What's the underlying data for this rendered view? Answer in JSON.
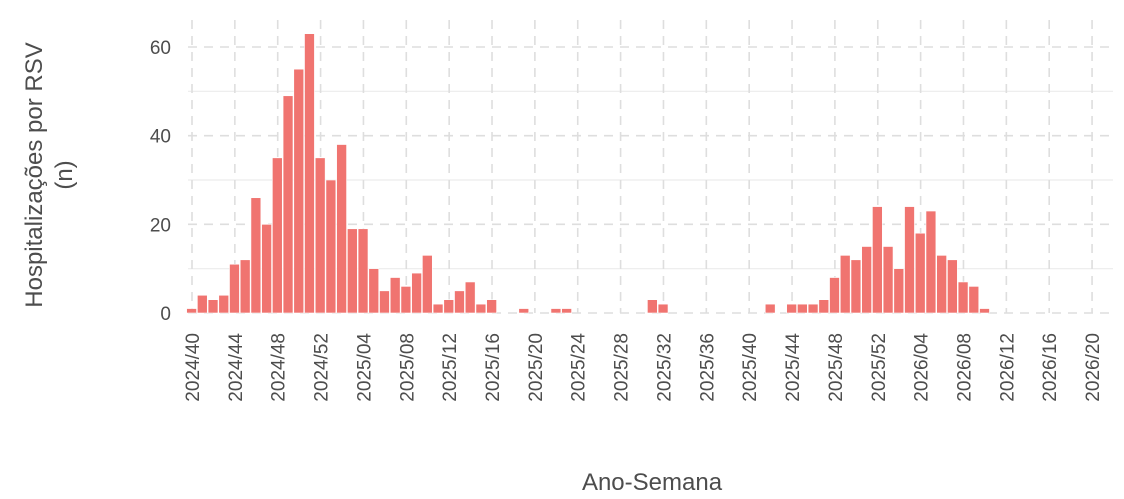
{
  "chart_data": {
    "type": "bar",
    "xlabel": "Ano-Semana",
    "ylabel_lines": [
      "Hospitalizações por RSV",
      "(n)"
    ],
    "ylim": [
      0,
      66
    ],
    "y_ticks": [
      0,
      20,
      40,
      60
    ],
    "x_tick_labels": [
      "2024/40",
      "2024/44",
      "2024/48",
      "2024/52",
      "2025/04",
      "2025/08",
      "2025/12",
      "2025/16",
      "2025/20",
      "2025/24",
      "2025/28",
      "2025/32",
      "2025/36",
      "2025/40",
      "2025/44",
      "2025/48",
      "2025/52",
      "2026/04",
      "2026/08",
      "2026/12",
      "2026/16",
      "2026/20"
    ],
    "x_tick_every": 4,
    "bar_color": "#f07470",
    "grid": "dashed-major-solid-minor",
    "values": [
      1,
      4,
      3,
      4,
      11,
      12,
      26,
      20,
      35,
      49,
      55,
      63,
      35,
      30,
      38,
      19,
      19,
      10,
      5,
      8,
      6,
      9,
      13,
      2,
      3,
      5,
      7,
      2,
      3,
      0,
      0,
      1,
      0,
      0,
      1,
      1,
      0,
      0,
      0,
      0,
      0,
      0,
      0,
      3,
      2,
      0,
      0,
      0,
      0,
      0,
      0,
      0,
      0,
      0,
      2,
      0,
      2,
      2,
      2,
      3,
      8,
      13,
      12,
      15,
      24,
      15,
      10,
      24,
      18,
      23,
      13,
      12,
      7,
      6,
      1
    ]
  }
}
